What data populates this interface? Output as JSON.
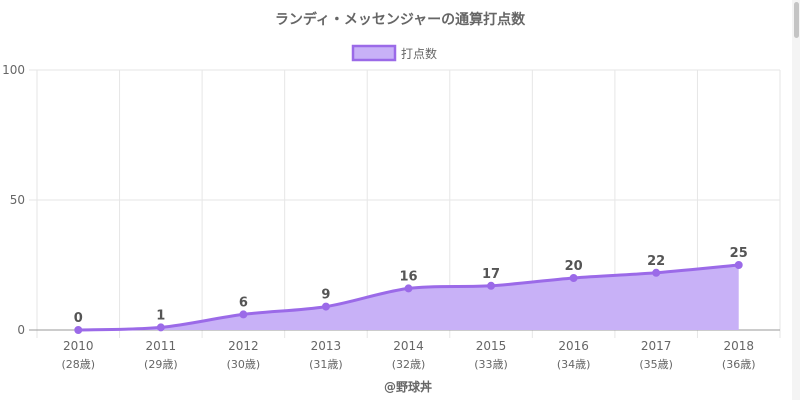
{
  "chart_data": {
    "type": "area",
    "title": "ランディ・メッセンジャーの通算打点数",
    "legend": {
      "label": "打点数",
      "placement": "top-center"
    },
    "categories": [
      "2010",
      "2011",
      "2012",
      "2013",
      "2014",
      "2015",
      "2016",
      "2017",
      "2018"
    ],
    "category_sublabels": [
      "(28歳)",
      "(29歳)",
      "(30歳)",
      "(31歳)",
      "(32歳)",
      "(33歳)",
      "(34歳)",
      "(35歳)",
      "(36歳)"
    ],
    "series": [
      {
        "name": "打点数",
        "values": [
          0,
          1,
          6,
          9,
          16,
          17,
          20,
          22,
          25
        ]
      }
    ],
    "ylim": [
      0,
      100
    ],
    "yticks": [
      0,
      50,
      100
    ],
    "grid": true,
    "data_labels": true,
    "footer": "@野球丼",
    "colors": {
      "line": "#9b6ae8",
      "fill": "#c8b1f7",
      "point": "#9b6ae8",
      "grid": "#e6e6e6",
      "text": "#666666"
    }
  }
}
